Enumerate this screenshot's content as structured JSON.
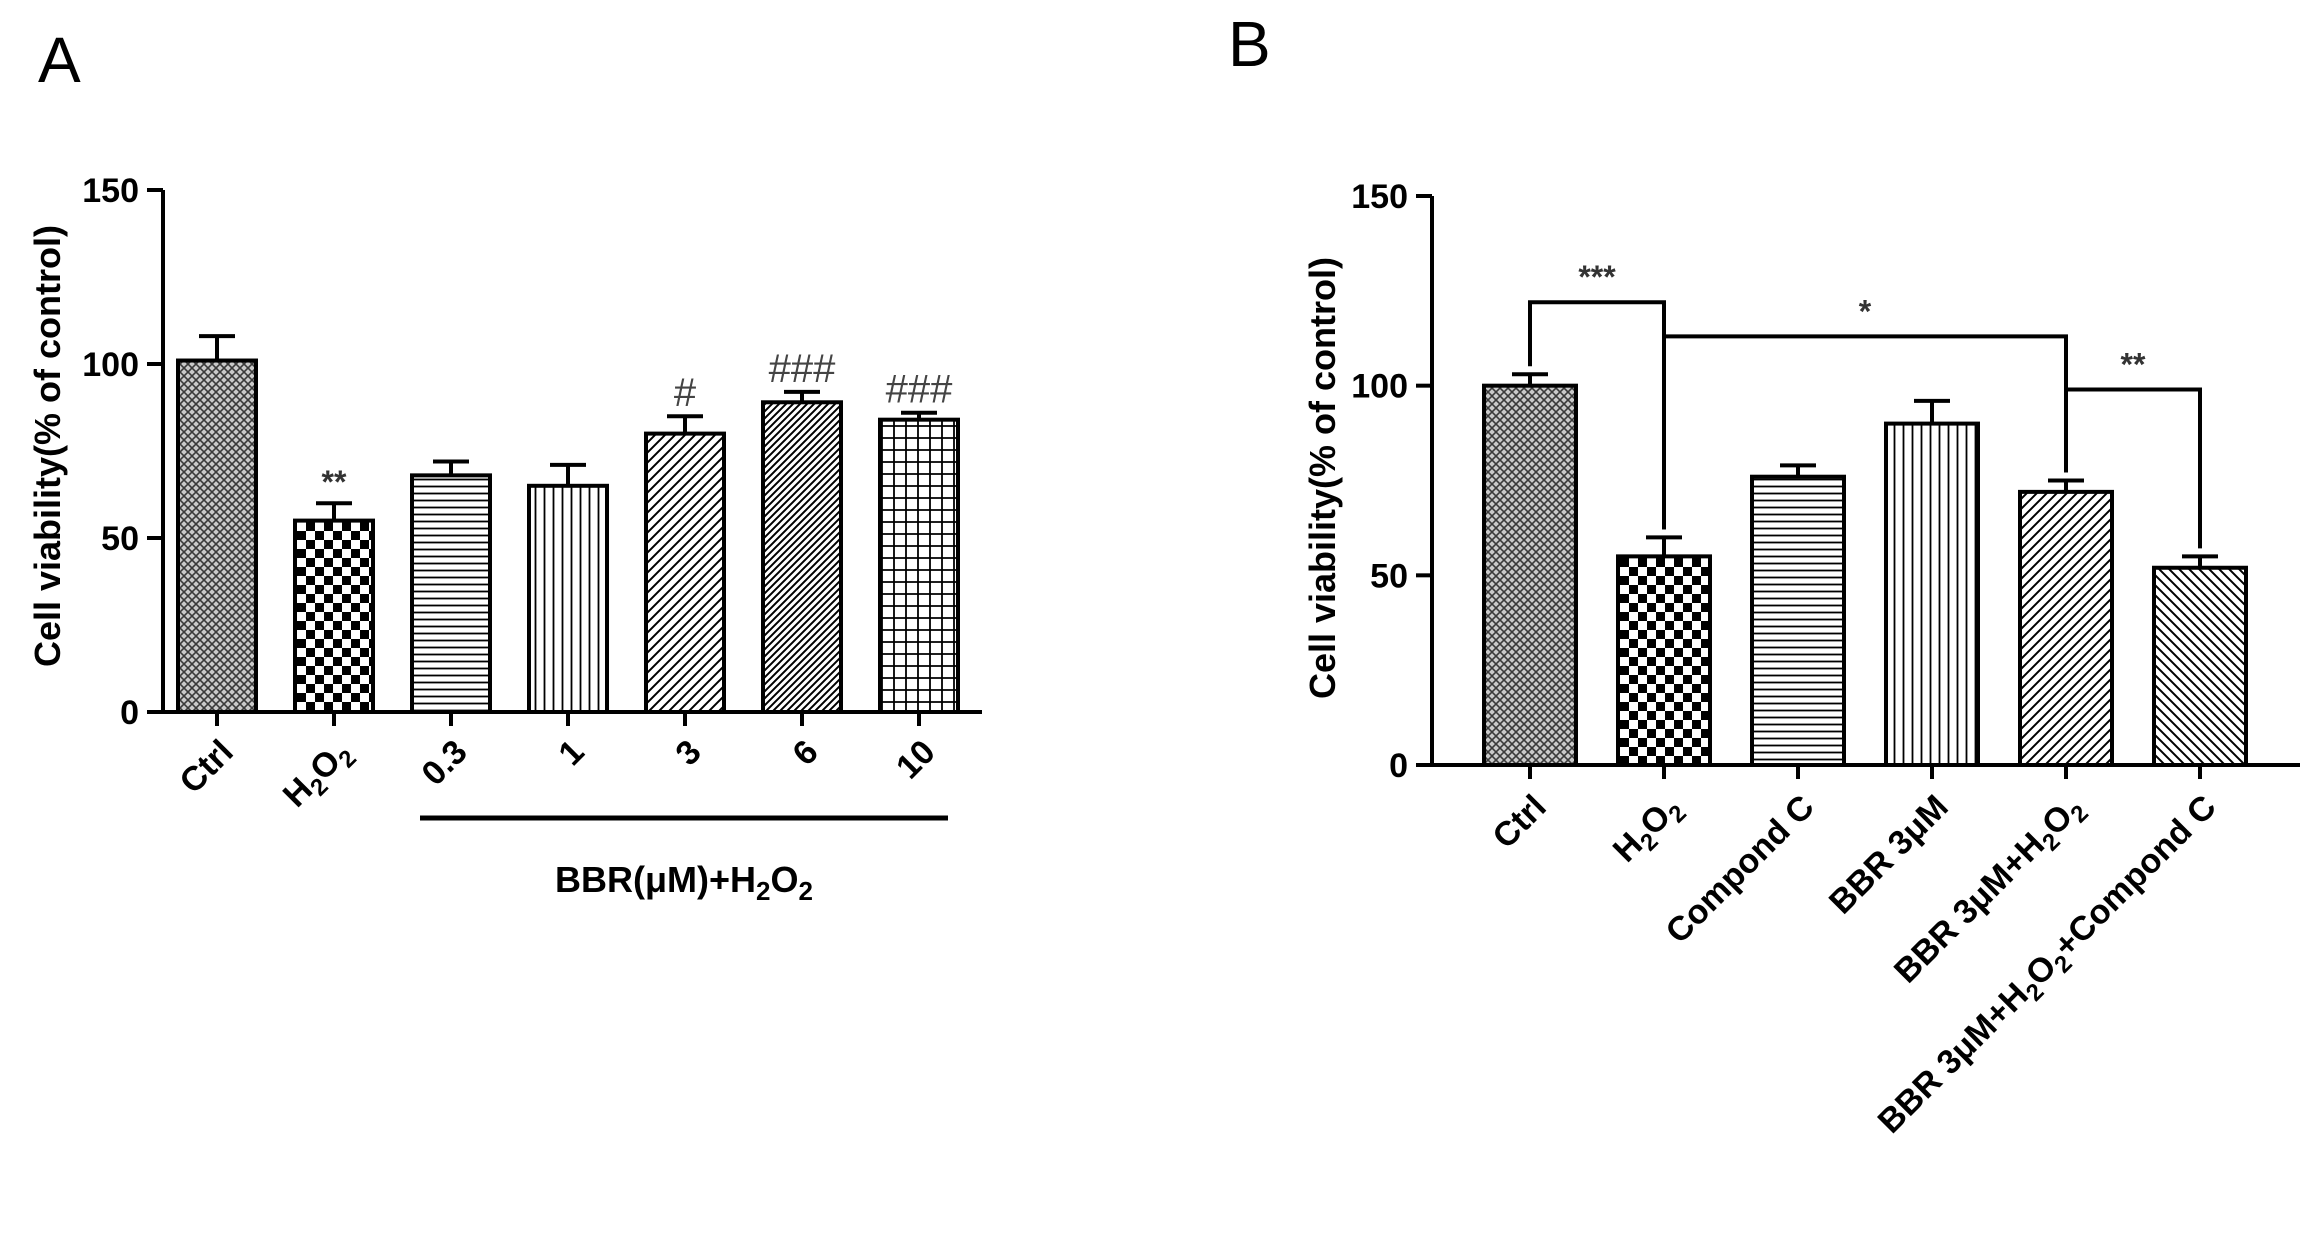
{
  "chart_data": [
    {
      "panel_label": "A",
      "type": "bar",
      "ylabel": "Cell viability(% of control)",
      "ylim": [
        0,
        150
      ],
      "yticks": [
        "0",
        "50",
        "100",
        "150"
      ],
      "categories": [
        {
          "base": "Ctrl",
          "sub1": "",
          "mid": "",
          "sub2": ""
        },
        {
          "base": "H",
          "sub1": "2",
          "mid": "O",
          "sub2": "2"
        },
        {
          "base": "0.3",
          "sub1": "",
          "mid": "",
          "sub2": ""
        },
        {
          "base": "1",
          "sub1": "",
          "mid": "",
          "sub2": ""
        },
        {
          "base": "3",
          "sub1": "",
          "mid": "",
          "sub2": ""
        },
        {
          "base": "6",
          "sub1": "",
          "mid": "",
          "sub2": ""
        },
        {
          "base": "10",
          "sub1": "",
          "mid": "",
          "sub2": ""
        }
      ],
      "values": [
        101,
        55,
        68,
        65,
        80,
        89,
        84
      ],
      "errors": [
        7,
        5,
        4,
        6,
        5,
        3,
        2
      ],
      "patterns": [
        "crosshatch",
        "checker",
        "hlines",
        "vlines",
        "diag-right",
        "diag-dense",
        "grid"
      ],
      "annotations": [
        {
          "index": 1,
          "text": "**"
        },
        {
          "index": 4,
          "text": "#"
        },
        {
          "index": 5,
          "text": "###"
        },
        {
          "index": 6,
          "text": "###"
        }
      ],
      "group_label": {
        "prefix": "BBR(μM)+H",
        "sub1": "2",
        "mid": "O",
        "sub2": "2"
      }
    },
    {
      "panel_label": "B",
      "type": "bar",
      "ylabel": "Cell viability(% of control)",
      "ylim": [
        0,
        150
      ],
      "yticks": [
        "0",
        "50",
        "100",
        "150"
      ],
      "categories": [
        {
          "base": "Ctrl",
          "sub1": "",
          "mid": "",
          "sub2": "",
          "tail": ""
        },
        {
          "base": "H",
          "sub1": "2",
          "mid": "O",
          "sub2": "2",
          "tail": ""
        },
        {
          "base": "Compond C",
          "sub1": "",
          "mid": "",
          "sub2": "",
          "tail": ""
        },
        {
          "base": "BBR 3μM",
          "sub1": "",
          "mid": "",
          "sub2": "",
          "tail": ""
        },
        {
          "base": "BBR 3μM+H",
          "sub1": "2",
          "mid": "O",
          "sub2": "2",
          "tail": ""
        },
        {
          "base": "BBR 3μM+H",
          "sub1": "2",
          "mid": "O",
          "sub2": "2",
          "tail": "+Compond C"
        }
      ],
      "values": [
        100,
        55,
        76,
        90,
        72,
        52
      ],
      "errors": [
        3,
        5,
        3,
        6,
        3,
        3
      ],
      "patterns": [
        "crosshatch",
        "checker",
        "hlines",
        "vlines",
        "diag-right",
        "diag-left"
      ],
      "brackets": [
        {
          "from": 0,
          "to": 1,
          "y": 122,
          "text": "***"
        },
        {
          "from": 1,
          "to": 4,
          "y": 113,
          "text": "*"
        },
        {
          "from": 4,
          "to": 5,
          "y": 99,
          "text": "**"
        }
      ]
    }
  ]
}
